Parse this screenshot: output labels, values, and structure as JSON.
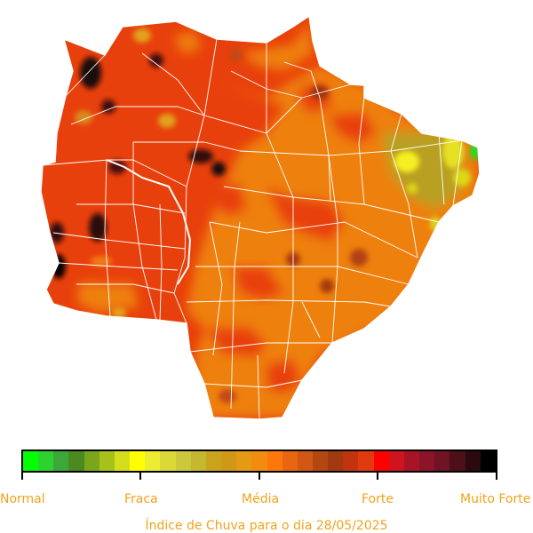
{
  "map": {
    "region_outline_color": "#ffffff",
    "base_color": "#e8400c",
    "medium_color": "#ee8010",
    "scale_levels": [
      "Normal",
      "Fraca",
      "Média",
      "Forte",
      "Muito Forte"
    ]
  },
  "legend": {
    "colors": [
      "#00ff00",
      "#2ed22e",
      "#3aa83a",
      "#4a8a20",
      "#79a61a",
      "#a6c21a",
      "#d4de1a",
      "#ffff00",
      "#ecec30",
      "#dcd838",
      "#ccc83c",
      "#c4b830",
      "#c8a41c",
      "#d09818",
      "#e49a12",
      "#f08c10",
      "#fc780a",
      "#e86612",
      "#d05814",
      "#b44612",
      "#a23a10",
      "#c23410",
      "#e03a0e",
      "#ff0000",
      "#d0141e",
      "#a81426",
      "#8c1428",
      "#6e1424",
      "#4c1018",
      "#2a0a0e",
      "#000000"
    ],
    "labels": [
      "Normal",
      "Fraca",
      "Média",
      "Forte",
      "Muito Forte"
    ]
  },
  "caption": "Índice de Chuva para o dia 28/05/2025"
}
